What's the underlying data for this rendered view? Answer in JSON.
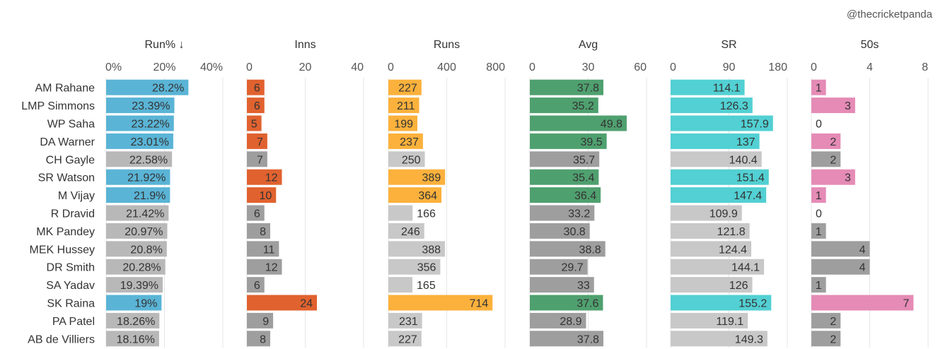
{
  "credit": "@thecricketpanda",
  "colors": {
    "run_pct": "#5ab4d6",
    "inns": "#e0622f",
    "runs": "#fbb13c",
    "avg": "#4fa06f",
    "sr": "#52d0d3",
    "fifties": "#e58bb6",
    "grey_dark": "#9e9e9e",
    "grey_light": "#c8c8c8"
  },
  "chart_data": {
    "type": "bar",
    "orientation": "horizontal",
    "categories": [
      "AM Rahane",
      "LMP Simmons",
      "WP Saha",
      "DA Warner",
      "CH Gayle",
      "SR Watson",
      "M Vijay",
      "R Dravid",
      "MK Pandey",
      "MEK Hussey",
      "DR Smith",
      "SA Yadav",
      "SK Raina",
      "PA Patel",
      "AB de Villiers"
    ],
    "highlighted": [
      true,
      true,
      true,
      true,
      false,
      true,
      true,
      false,
      false,
      false,
      false,
      false,
      true,
      false,
      false
    ],
    "series": [
      {
        "name": "Run% ↓",
        "key": "run_pct",
        "ticks": [
          "0%",
          "20%",
          "40%"
        ],
        "max": 40,
        "values": [
          28.2,
          23.39,
          23.22,
          23.01,
          22.58,
          21.92,
          21.9,
          21.42,
          20.97,
          20.8,
          20.28,
          19.39,
          19,
          18.26,
          18.16
        ],
        "labels": [
          "28.2%",
          "23.39%",
          "23.22%",
          "23.01%",
          "22.58%",
          "21.92%",
          "21.9%",
          "21.42%",
          "20.97%",
          "20.8%",
          "20.28%",
          "19.39%",
          "19%",
          "18.26%",
          "18.16%"
        ]
      },
      {
        "name": "Inns",
        "key": "inns",
        "ticks": [
          "0",
          "20",
          "40"
        ],
        "max": 40,
        "values": [
          6,
          6,
          5,
          7,
          7,
          12,
          10,
          6,
          8,
          11,
          12,
          6,
          24,
          9,
          8
        ],
        "labels": [
          "6",
          "6",
          "5",
          "7",
          "7",
          "12",
          "10",
          "6",
          "8",
          "11",
          "12",
          "6",
          "24",
          "9",
          "8"
        ]
      },
      {
        "name": "Runs",
        "key": "runs",
        "ticks": [
          "0",
          "400",
          "800"
        ],
        "max": 800,
        "values": [
          227,
          211,
          199,
          237,
          250,
          389,
          364,
          166,
          246,
          388,
          356,
          165,
          714,
          231,
          227
        ],
        "labels": [
          "227",
          "211",
          "199",
          "237",
          "250",
          "389",
          "364",
          "166",
          "246",
          "388",
          "356",
          "165",
          "714",
          "231",
          "227"
        ]
      },
      {
        "name": "Avg",
        "key": "avg",
        "ticks": [
          "0",
          "30",
          "60"
        ],
        "max": 60,
        "values": [
          37.8,
          35.2,
          49.8,
          39.5,
          35.7,
          35.4,
          36.4,
          33.2,
          30.8,
          38.8,
          29.7,
          33,
          37.6,
          28.9,
          37.8
        ],
        "labels": [
          "37.8",
          "35.2",
          "49.8",
          "39.5",
          "35.7",
          "35.4",
          "36.4",
          "33.2",
          "30.8",
          "38.8",
          "29.7",
          "33",
          "37.6",
          "28.9",
          "37.8"
        ]
      },
      {
        "name": "SR",
        "key": "sr",
        "ticks": [
          "0",
          "90",
          "180"
        ],
        "max": 180,
        "values": [
          114.1,
          126.3,
          157.9,
          137,
          140.4,
          151.4,
          147.4,
          109.9,
          121.8,
          124.4,
          144.1,
          126,
          155.2,
          119.1,
          149.3
        ],
        "labels": [
          "114.1",
          "126.3",
          "157.9",
          "137",
          "140.4",
          "151.4",
          "147.4",
          "109.9",
          "121.8",
          "124.4",
          "144.1",
          "126",
          "155.2",
          "119.1",
          "149.3"
        ]
      },
      {
        "name": "50s",
        "key": "fifties",
        "ticks": [
          "0",
          "4",
          "8"
        ],
        "max": 8,
        "values": [
          1,
          3,
          0,
          2,
          2,
          3,
          1,
          0,
          1,
          4,
          4,
          1,
          7,
          2,
          2
        ],
        "labels": [
          "1",
          "3",
          "0",
          "2",
          "2",
          "3",
          "1",
          "0",
          "1",
          "4",
          "4",
          "1",
          "7",
          "2",
          "2"
        ]
      }
    ]
  }
}
